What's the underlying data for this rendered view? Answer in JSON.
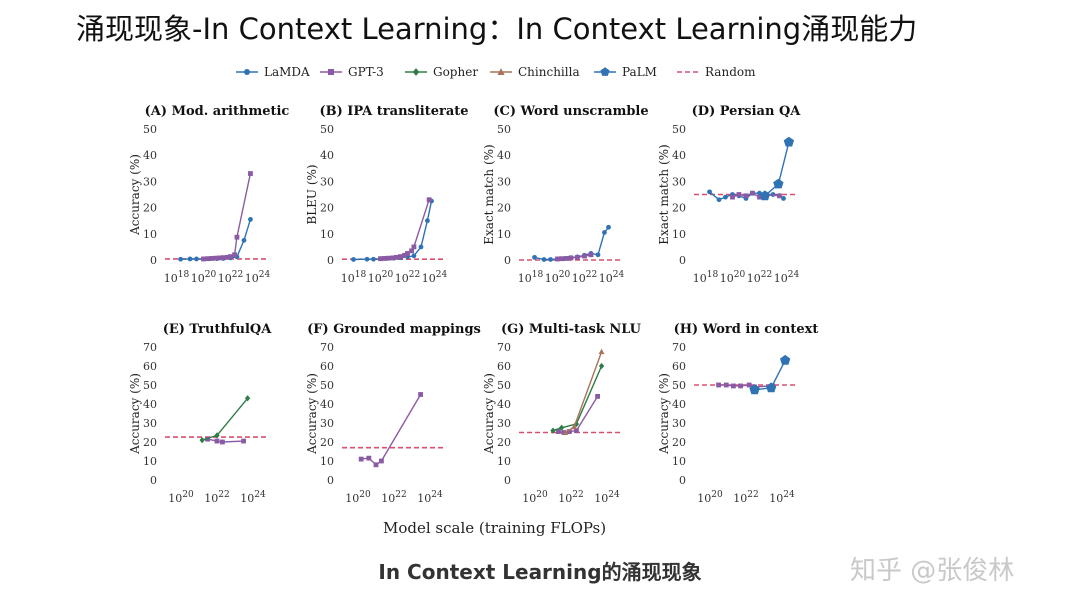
{
  "slide_title": "涌现现象-In Context Learning：In Context Learning涌现能力",
  "x_axis_label": "Model scale (training FLOPs)",
  "caption": "In Context Learning的涌现现象",
  "watermark": "知乎 @张俊林",
  "colors": {
    "LaMDA": "#2f73b5",
    "GPT-3": "#8b5aa5",
    "Gopher": "#2e7d46",
    "Chinchilla": "#a8735a",
    "PaLM": "#2f73b5",
    "Random": "#d9506e"
  },
  "legend": [
    {
      "name": "LaMDA",
      "marker": "circle",
      "dashed": false
    },
    {
      "name": "GPT-3",
      "marker": "square",
      "dashed": false
    },
    {
      "name": "Gopher",
      "marker": "diamond",
      "dashed": false
    },
    {
      "name": "Chinchilla",
      "marker": "triangle",
      "dashed": false
    },
    {
      "name": "PaLM",
      "marker": "pentagon",
      "dashed": false
    },
    {
      "name": "Random",
      "marker": "none",
      "dashed": true
    }
  ],
  "chart_data": [
    {
      "type": "line",
      "title": "(A) Mod. arithmetic",
      "ylabel": "Accuracy (%)",
      "x_scale": "log",
      "xlim": [
        1e+17,
        1e+25
      ],
      "xticks": [
        1e+18,
        1e+20,
        1e+22,
        1e+24
      ],
      "ylim": [
        0,
        50
      ],
      "yticks": [
        0,
        10,
        20,
        30,
        40,
        50
      ],
      "random": 0.4,
      "series": [
        {
          "name": "LaMDA",
          "x": [
            2e+18,
            1e+19,
            3e+19,
            1e+20,
            3e+20,
            1e+21,
            3e+21,
            1e+22,
            3e+22,
            1e+23,
            3e+23
          ],
          "y": [
            0.3,
            0.4,
            0.4,
            0.4,
            0.5,
            0.5,
            0.6,
            0.8,
            1.2,
            7.5,
            15.5
          ]
        },
        {
          "name": "GPT-3",
          "x": [
            1e+20,
            2e+20,
            4e+20,
            8e+20,
            1.5e+21,
            3e+21,
            6e+21,
            1e+22,
            2e+22,
            3e+22,
            3e+23
          ],
          "y": [
            0.4,
            0.5,
            0.6,
            0.7,
            0.8,
            0.9,
            1.0,
            1.3,
            2.0,
            8.7,
            33.0
          ]
        }
      ]
    },
    {
      "type": "line",
      "title": "(B) IPA transliterate",
      "ylabel": "BLEU (%)",
      "x_scale": "log",
      "xlim": [
        1e+17,
        1e+25
      ],
      "xticks": [
        1e+18,
        1e+20,
        1e+22,
        1e+24
      ],
      "ylim": [
        0,
        50
      ],
      "yticks": [
        0,
        10,
        20,
        30,
        40,
        50
      ],
      "random": 0.3,
      "series": [
        {
          "name": "LaMDA",
          "x": [
            1e+18,
            1e+19,
            3e+19,
            1e+20,
            3e+20,
            1e+21,
            3e+21,
            1e+22,
            3e+22,
            1e+23,
            3e+23,
            6e+23
          ],
          "y": [
            0.2,
            0.3,
            0.3,
            0.5,
            0.6,
            0.7,
            0.9,
            1.2,
            1.6,
            5.0,
            15.0,
            22.5
          ]
        },
        {
          "name": "GPT-3",
          "x": [
            1e+20,
            2e+20,
            4e+20,
            8e+20,
            1.5e+21,
            3e+21,
            6e+21,
            1e+22,
            2e+22,
            3e+22,
            4e+23
          ],
          "y": [
            0.5,
            0.6,
            0.7,
            0.8,
            1.0,
            1.3,
            1.8,
            2.5,
            3.5,
            5.0,
            23.0
          ]
        }
      ]
    },
    {
      "type": "line",
      "title": "(C) Word unscramble",
      "ylabel": "Exact match (%)",
      "x_scale": "log",
      "xlim": [
        1e+17,
        1e+25
      ],
      "xticks": [
        1e+18,
        1e+20,
        1e+22,
        1e+24
      ],
      "ylim": [
        0,
        50
      ],
      "yticks": [
        0,
        10,
        20,
        30,
        40,
        50
      ],
      "random": 0,
      "series": [
        {
          "name": "LaMDA",
          "x": [
            2e+18,
            1e+19,
            3e+19,
            1e+20,
            3e+20,
            1e+21,
            3e+21,
            1e+22,
            3e+22,
            1e+23,
            3e+23,
            6e+23
          ],
          "y": [
            1.0,
            0.2,
            0.2,
            0.4,
            0.5,
            0.9,
            1.2,
            1.8,
            2.5,
            2.0,
            10.5,
            12.5
          ]
        },
        {
          "name": "GPT-3",
          "x": [
            1e+20,
            2e+20,
            5e+20,
            1e+21,
            3e+21,
            1e+22,
            3e+22
          ],
          "y": [
            0.4,
            0.5,
            0.6,
            0.8,
            1.0,
            1.5,
            2.0
          ]
        }
      ]
    },
    {
      "type": "line",
      "title": "(D) Persian QA",
      "ylabel": "Exact match (%)",
      "x_scale": "log",
      "xlim": [
        1e+17,
        1e+25
      ],
      "xticks": [
        1e+18,
        1e+20,
        1e+22,
        1e+24
      ],
      "ylim": [
        0,
        50
      ],
      "yticks": [
        0,
        10,
        20,
        30,
        40,
        50
      ],
      "random": 25,
      "series": [
        {
          "name": "LaMDA",
          "x": [
            2e+18,
            1e+19,
            3e+19,
            1e+20,
            3e+20,
            1e+21,
            3e+21,
            1e+22,
            3e+22,
            1e+23,
            3e+23,
            6e+23
          ],
          "y": [
            26,
            23,
            24,
            25,
            24.5,
            23.5,
            25.5,
            25.5,
            24.5,
            25,
            24.5,
            23.5
          ]
        },
        {
          "name": "GPT-3",
          "x": [
            1e+20,
            3e+20,
            1e+21,
            3e+21,
            1e+22,
            3e+22,
            3e+23
          ],
          "y": [
            24,
            25,
            24.5,
            25.5,
            24,
            25,
            24.5
          ]
        },
        {
          "name": "PaLM",
          "x": [
            2.5e+22,
            2.5e+23,
            1.5e+24
          ],
          "y": [
            24.5,
            29,
            45
          ]
        }
      ]
    },
    {
      "type": "line",
      "title": "(E) TruthfulQA",
      "ylabel": "Accuracy (%)",
      "x_scale": "log",
      "xlim": [
        1e+19,
        1e+25
      ],
      "xticks": [
        1e+20,
        1e+22,
        1e+24
      ],
      "ylim": [
        0,
        70
      ],
      "yticks": [
        0,
        10,
        20,
        30,
        40,
        50,
        60,
        70
      ],
      "random": 22.6,
      "series": [
        {
          "name": "GPT-3",
          "x": [
            3e+21,
            1e+22,
            2e+22,
            3e+23
          ],
          "y": [
            21.5,
            20.5,
            20,
            20.5
          ]
        },
        {
          "name": "Gopher",
          "x": [
            1.5e+21,
            1e+22,
            5e+23
          ],
          "y": [
            21,
            23.5,
            43
          ]
        }
      ]
    },
    {
      "type": "line",
      "title": "(F) Grounded mappings",
      "ylabel": "Accuracy (%)",
      "x_scale": "log",
      "xlim": [
        1e+19,
        1e+25
      ],
      "xticks": [
        1e+20,
        1e+22,
        1e+24
      ],
      "ylim": [
        0,
        70
      ],
      "yticks": [
        0,
        10,
        20,
        30,
        40,
        50,
        60,
        70
      ],
      "random": 17,
      "series": [
        {
          "name": "GPT-3",
          "x": [
            1.5e+20,
            4e+20,
            1e+21,
            2e+21,
            3e+23
          ],
          "y": [
            11,
            11.5,
            8,
            10,
            45
          ]
        }
      ]
    },
    {
      "type": "line",
      "title": "(G) Multi-task NLU",
      "ylabel": "Accuracy (%)",
      "x_scale": "log",
      "xlim": [
        1e+19,
        1e+25
      ],
      "xticks": [
        1e+20,
        1e+22,
        1e+24
      ],
      "ylim": [
        0,
        70
      ],
      "yticks": [
        0,
        10,
        20,
        30,
        40,
        50,
        60,
        70
      ],
      "random": 25,
      "series": [
        {
          "name": "GPT-3",
          "x": [
            2e+21,
            4e+21,
            8e+21,
            2e+22,
            3e+23
          ],
          "y": [
            25.5,
            25,
            25.5,
            26,
            44
          ]
        },
        {
          "name": "Gopher",
          "x": [
            1e+21,
            3e+21,
            2e+22,
            5e+23
          ],
          "y": [
            26,
            27.5,
            29.5,
            60
          ]
        },
        {
          "name": "Chinchilla",
          "x": [
            5e+21,
            1.5e+22,
            5e+23
          ],
          "y": [
            25,
            28,
            67.5
          ]
        }
      ]
    },
    {
      "type": "line",
      "title": "(H) Word in context",
      "ylabel": "Accuracy (%)",
      "x_scale": "log",
      "xlim": [
        1e+19,
        1e+25
      ],
      "xticks": [
        1e+20,
        1e+22,
        1e+24
      ],
      "ylim": [
        0,
        70
      ],
      "yticks": [
        0,
        10,
        20,
        30,
        40,
        50,
        60,
        70
      ],
      "random": 50,
      "series": [
        {
          "name": "GPT-3",
          "x": [
            3e+20,
            8e+20,
            2e+21,
            5e+21,
            1.5e+22,
            3e+22,
            3e+23
          ],
          "y": [
            50,
            50,
            49.5,
            49.5,
            50,
            49,
            49.5
          ]
        },
        {
          "name": "PaLM",
          "x": [
            3e+22,
            2.5e+23,
            1.5e+24
          ],
          "y": [
            47.5,
            48.5,
            63
          ]
        }
      ]
    }
  ]
}
